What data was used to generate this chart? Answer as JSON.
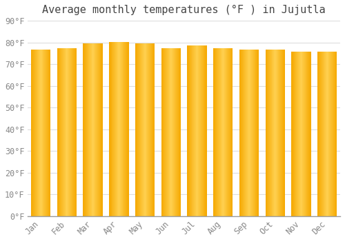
{
  "title": "Average monthly temperatures (°F ) in Jujutla",
  "months": [
    "Jan",
    "Feb",
    "Mar",
    "Apr",
    "May",
    "Jun",
    "Jul",
    "Aug",
    "Sep",
    "Oct",
    "Nov",
    "Dec"
  ],
  "values": [
    76.8,
    77.4,
    79.5,
    80.1,
    79.5,
    77.2,
    78.5,
    77.4,
    76.8,
    76.8,
    75.9,
    75.9
  ],
  "bar_color_center": "#FFD050",
  "bar_color_edge": "#F5A800",
  "background_color": "#ffffff",
  "plot_bg_color": "#ffffff",
  "grid_color": "#dddddd",
  "ylim": [
    0,
    90
  ],
  "yticks": [
    0,
    10,
    20,
    30,
    40,
    50,
    60,
    70,
    80,
    90
  ],
  "ytick_labels": [
    "0°F",
    "10°F",
    "20°F",
    "30°F",
    "40°F",
    "50°F",
    "60°F",
    "70°F",
    "80°F",
    "90°F"
  ],
  "title_fontsize": 11,
  "tick_fontsize": 8.5,
  "font_family": "monospace",
  "bar_width": 0.75
}
